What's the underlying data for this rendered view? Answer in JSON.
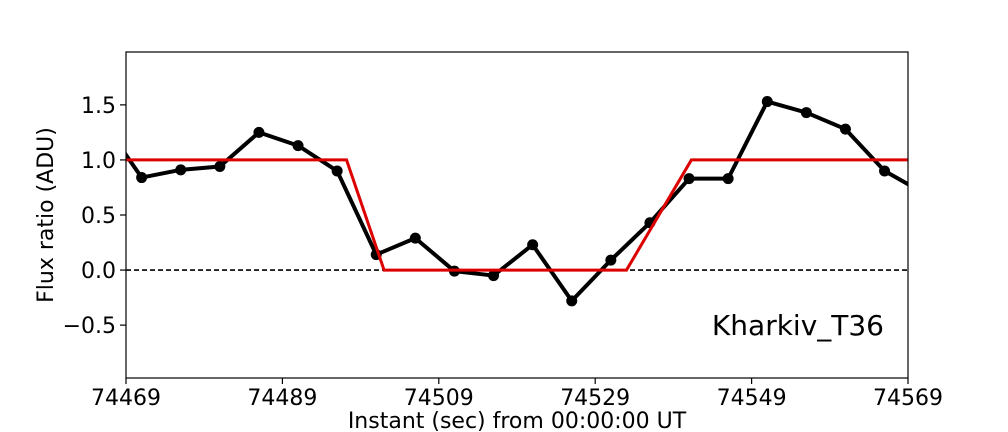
{
  "chart_data": {
    "type": "line",
    "xlabel": "Instant (sec) from 00:00:00 UT",
    "ylabel": "Flux ratio (ADU)",
    "xlim": [
      74469,
      74569
    ],
    "ylim": [
      -0.98,
      1.98
    ],
    "xticks": [
      74469,
      74489,
      74509,
      74529,
      74549,
      74569
    ],
    "xtick_labels": [
      "74469",
      "74489",
      "74509",
      "74529",
      "74549",
      "74569"
    ],
    "yticks": [
      -0.5,
      0.0,
      0.5,
      1.0,
      1.5
    ],
    "ytick_labels": [
      "−0.5",
      "0.0",
      "0.5",
      "1.0",
      "1.5"
    ],
    "grid": false,
    "annotation": "Kharkiv_T36",
    "reference_line": {
      "y": 0.0,
      "style": "dashed",
      "color": "#000000"
    },
    "series": [
      {
        "style": "line-with-markers",
        "color": "#000000",
        "x": [
          74467,
          74471,
          74476,
          74481,
          74486,
          74491,
          74496,
          74501,
          74506,
          74511,
          74516,
          74521,
          74526,
          74531,
          74536,
          74541,
          74546,
          74551,
          74556,
          74561,
          74566,
          74571
        ],
        "y": [
          1.25,
          0.84,
          0.91,
          0.94,
          1.25,
          1.13,
          0.9,
          0.14,
          0.29,
          -0.01,
          -0.05,
          0.23,
          -0.28,
          0.09,
          0.43,
          0.83,
          0.83,
          1.53,
          1.43,
          1.28,
          0.9,
          0.7
        ]
      },
      {
        "style": "line",
        "color": "#dd0000",
        "x": [
          74469,
          74497.2,
          74502,
          74533,
          74541.3,
          74569
        ],
        "y": [
          1.0,
          1.0,
          0.0,
          0.0,
          1.0,
          1.0
        ]
      }
    ]
  }
}
